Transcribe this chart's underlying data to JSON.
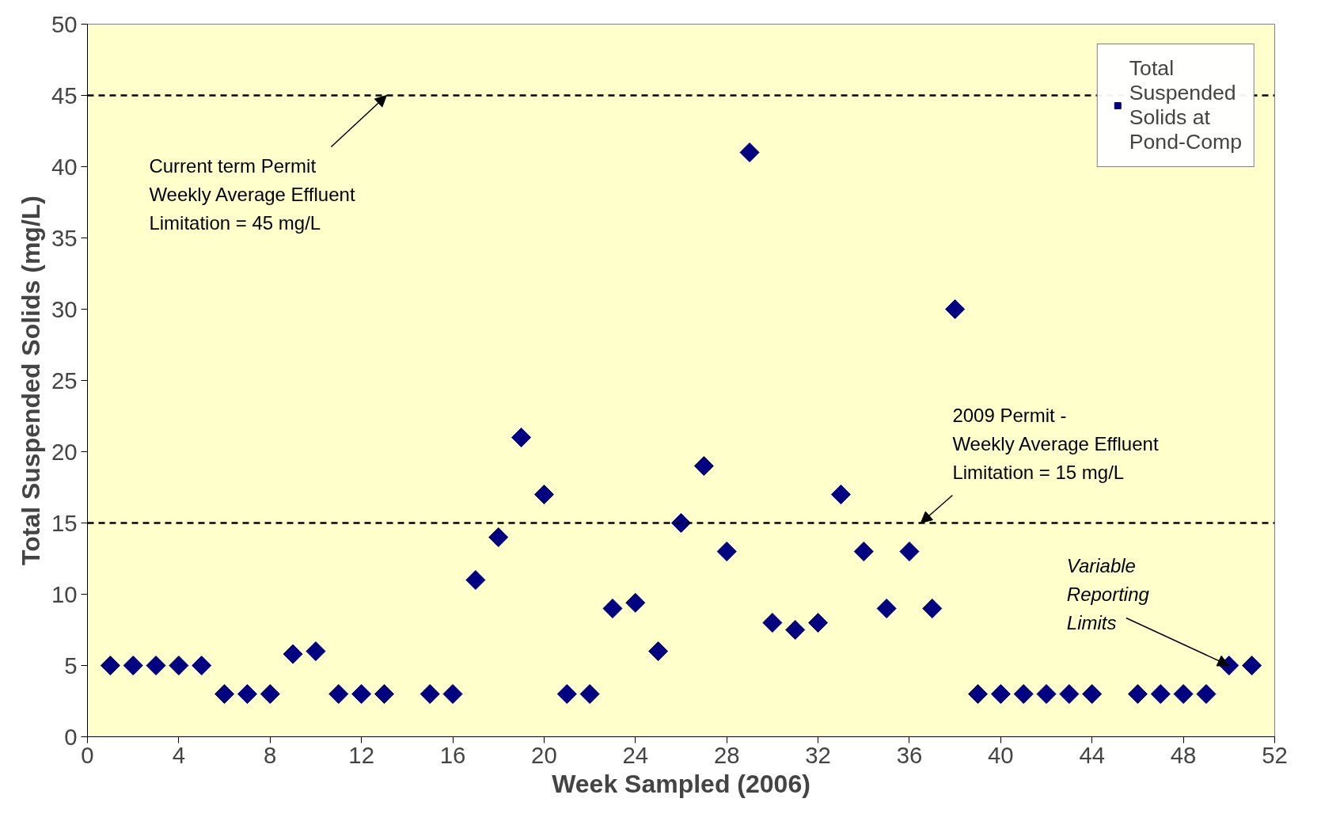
{
  "chart_data": {
    "type": "scatter",
    "xlabel": "Week Sampled (2006)",
    "ylabel": "Total Suspended Solids (mg/L)",
    "x": [
      1,
      2,
      3,
      4,
      5,
      6,
      7,
      8,
      9,
      10,
      11,
      12,
      13,
      15,
      16,
      17,
      18,
      19,
      20,
      21,
      22,
      23,
      24,
      25,
      26,
      27,
      28,
      29,
      30,
      31,
      32,
      33,
      34,
      35,
      36,
      37,
      38,
      39,
      40,
      41,
      42,
      43,
      44,
      46,
      47,
      48,
      49,
      50,
      51
    ],
    "series": [
      {
        "name": "Total Suspended Solids at Pond-Comp",
        "color": "#000080",
        "values": [
          5,
          5,
          5,
          5,
          5,
          3,
          3,
          3,
          5.8,
          6,
          3,
          3,
          3,
          3,
          3,
          11,
          14,
          21,
          17,
          3,
          3,
          9,
          9.4,
          6,
          15,
          19,
          13,
          41,
          8,
          7.5,
          8,
          17,
          13,
          9,
          13,
          9,
          30,
          3,
          3,
          3,
          3,
          3,
          3,
          3,
          3,
          3,
          3,
          5,
          5
        ]
      }
    ],
    "xlim": [
      0,
      52
    ],
    "ylim": [
      0,
      50
    ],
    "xticks": [
      0,
      4,
      8,
      12,
      16,
      20,
      24,
      28,
      32,
      36,
      40,
      44,
      48,
      52
    ],
    "yticks": [
      0,
      5,
      10,
      15,
      20,
      25,
      30,
      35,
      40,
      45,
      50
    ],
    "ref_lines": [
      {
        "axis": "y",
        "value": 45,
        "color": "#000000",
        "line_style": "dashed"
      },
      {
        "axis": "y",
        "value": 15,
        "color": "#000000",
        "line_style": "dashed"
      }
    ],
    "annotations": [
      {
        "text": "Current term Permit\nWeekly Average Effluent\nLimitation = 45 mg/L",
        "x": 13.1,
        "y": 45
      },
      {
        "text": "2009 Permit -\nWeekly Average Effluent\nLimitation = 15 mg/L",
        "x": 36.5,
        "y": 15
      },
      {
        "text": "Variable\nReporting\nLimits",
        "x": 50,
        "y": 5
      }
    ],
    "marker": "diamond",
    "grid": false,
    "legend": "top right"
  }
}
